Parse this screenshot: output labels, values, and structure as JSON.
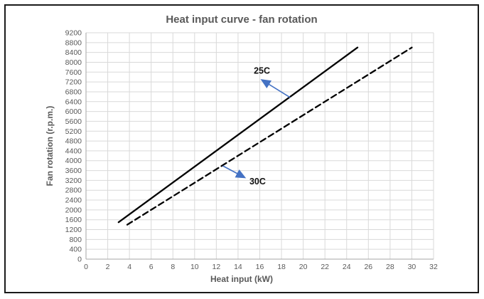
{
  "colors": {
    "title": "#595959",
    "tick_label": "#595959",
    "gridline": "#D9D9D9",
    "axis_line": "#A6A6A6",
    "series_line": "#000000",
    "arrow": "#4472C4",
    "frame_border": "#1a1a1a",
    "background": "#ffffff"
  },
  "chart_data": {
    "type": "line",
    "title": "Heat input curve - fan rotation",
    "xlabel": "Heat input (kW)",
    "ylabel": "Fan rotation (r.p.m.)",
    "xlim": [
      0,
      32
    ],
    "ylim": [
      0,
      9200
    ],
    "xticks": [
      0,
      2,
      4,
      6,
      8,
      10,
      12,
      14,
      16,
      18,
      20,
      22,
      24,
      26,
      28,
      30,
      32
    ],
    "yticks": [
      0,
      400,
      800,
      1200,
      1600,
      2000,
      2400,
      2800,
      3200,
      3600,
      4000,
      4400,
      4800,
      5200,
      5600,
      6000,
      6400,
      6800,
      7200,
      7600,
      8000,
      8400,
      8800,
      9200
    ],
    "grid": true,
    "legend_position": "none",
    "series": [
      {
        "name": "25C",
        "style": "solid",
        "color": "#000000",
        "points": [
          [
            3.0,
            1500
          ],
          [
            25.0,
            8600
          ]
        ]
      },
      {
        "name": "30C",
        "style": "dashed",
        "color": "#000000",
        "points": [
          [
            3.8,
            1400
          ],
          [
            30.0,
            8600
          ]
        ]
      }
    ],
    "annotations": [
      {
        "label": "25C",
        "label_xy": [
          16.2,
          7650
        ],
        "arrow_from_xy": [
          18.8,
          6570
        ],
        "arrow_to_xy": [
          16.2,
          7280
        ],
        "color": "#4472C4"
      },
      {
        "label": "30C",
        "label_xy": [
          15.8,
          3150
        ],
        "arrow_from_xy": [
          12.6,
          3790
        ],
        "arrow_to_xy": [
          14.6,
          3320
        ],
        "color": "#4472C4"
      }
    ]
  }
}
